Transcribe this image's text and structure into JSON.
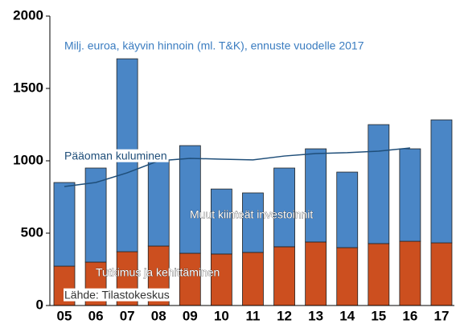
{
  "chart_data": {
    "type": "bar",
    "stacked": true,
    "subtitle": "Milj. euroa, käyvin hinnoin (ml. T&K), ennuste vuodelle 2017",
    "source": "Lähde: Tilastokeskus",
    "categories": [
      "05",
      "06",
      "07",
      "08",
      "09",
      "10",
      "11",
      "12",
      "13",
      "14",
      "15",
      "16",
      "17"
    ],
    "series": [
      {
        "name": "Tutkimus ja kehittäminen",
        "color": "#cc4f1f",
        "values": [
          272,
          300,
          372,
          411,
          361,
          356,
          367,
          406,
          439,
          400,
          428,
          444,
          433
        ]
      },
      {
        "name": "Muut kiinteät investoinnit",
        "color": "#4a86c6",
        "values": [
          578,
          650,
          1333,
          589,
          744,
          449,
          411,
          544,
          644,
          522,
          822,
          639,
          850
        ]
      },
      {
        "name": "Pääoman kuluminen",
        "type": "line",
        "color": "#1f4e79",
        "values": [
          822,
          850,
          917,
          1000,
          1017,
          1011,
          1006,
          1033,
          1050,
          1056,
          1067,
          1089,
          null
        ]
      }
    ],
    "ylim": [
      0,
      2000
    ],
    "yticks": [
      0,
      500,
      1000,
      1500,
      2000
    ],
    "grid": false
  }
}
